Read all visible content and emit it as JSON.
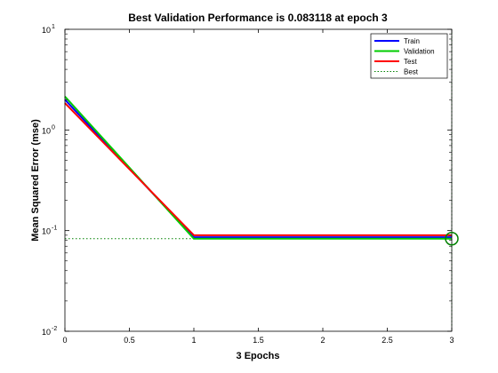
{
  "chart_data": {
    "type": "line",
    "title": "Best Validation Performance is 0.083118 at epoch 3",
    "xlabel": "3 Epochs",
    "ylabel": "Mean Squared Error  (mse)",
    "xlim": [
      0,
      3
    ],
    "ylim": [
      0.01,
      10
    ],
    "yscale": "log",
    "grid": false,
    "legend_position": "top-right",
    "x_ticks": [
      0,
      0.5,
      1,
      1.5,
      2,
      2.5,
      3
    ],
    "x_tick_labels": [
      "0",
      "0.5",
      "1",
      "1.5",
      "2",
      "2.5",
      "3"
    ],
    "y_ticks": [
      0.01,
      0.1,
      1,
      10
    ],
    "y_tick_base": "10",
    "y_tick_exponents": [
      "-2",
      "-1",
      "0",
      "1"
    ],
    "series": [
      {
        "name": "Train",
        "color": "#0000ff",
        "x": [
          0,
          1,
          2,
          3
        ],
        "y": [
          2.0,
          0.086,
          0.086,
          0.086
        ]
      },
      {
        "name": "Validation",
        "color": "#00cc00",
        "x": [
          0,
          1,
          2,
          3
        ],
        "y": [
          2.15,
          0.083118,
          0.083118,
          0.083118
        ]
      },
      {
        "name": "Test",
        "color": "#ff0000",
        "x": [
          0,
          1,
          2,
          3
        ],
        "y": [
          1.85,
          0.09,
          0.09,
          0.09
        ]
      }
    ],
    "best": {
      "name": "Best",
      "color": "#008000",
      "epoch": 3,
      "value": 0.083118
    }
  }
}
